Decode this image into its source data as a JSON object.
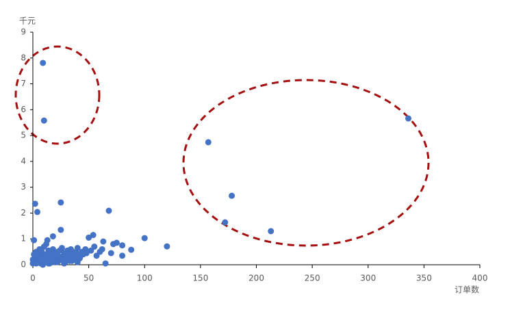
{
  "chart_data": {
    "type": "scatter",
    "x_label": "订单数",
    "y_label": "千元",
    "color": "#4472c4",
    "xlim": [
      0,
      400
    ],
    "xticks": [
      0,
      50,
      100,
      150,
      200,
      250,
      300,
      350,
      400
    ],
    "ylim": [
      0,
      9
    ],
    "yticks": [
      0,
      1,
      2,
      3,
      4,
      5,
      6,
      7,
      8,
      9
    ],
    "grid": false,
    "x": [
      9,
      10,
      157,
      336,
      178,
      172,
      213,
      2,
      4,
      25,
      68,
      100,
      120,
      25,
      1,
      54,
      50,
      63,
      65,
      88,
      80,
      80,
      75,
      18,
      13,
      0,
      0,
      1,
      1,
      2,
      2,
      3,
      3,
      4,
      4,
      5,
      5,
      6,
      6,
      7,
      7,
      8,
      8,
      9,
      10,
      10,
      11,
      12,
      12,
      13,
      14,
      15,
      15,
      16,
      17,
      18,
      19,
      20,
      20,
      21,
      22,
      23,
      24,
      25,
      26,
      27,
      28,
      29,
      30,
      31,
      32,
      33,
      34,
      35,
      36,
      37,
      38,
      39,
      40,
      41,
      42,
      44,
      45,
      47,
      48,
      52,
      55,
      57,
      60,
      62,
      70,
      72,
      3,
      6,
      9,
      14,
      22,
      28,
      33,
      40
    ],
    "values": [
      7.81,
      5.58,
      4.74,
      5.66,
      2.67,
      1.64,
      1.3,
      2.36,
      2.04,
      2.41,
      2.09,
      1.03,
      0.71,
      1.35,
      0.95,
      1.15,
      1.05,
      0.9,
      0.05,
      0.58,
      0.75,
      0.35,
      0.85,
      1.1,
      0.95,
      0.05,
      0.2,
      0.1,
      0.4,
      0.15,
      0.3,
      0.05,
      0.5,
      0.2,
      0.35,
      0.1,
      0.45,
      0.25,
      0.6,
      0.05,
      0.3,
      0.15,
      0.5,
      0.35,
      0.2,
      0.7,
      0.1,
      0.4,
      0.8,
      0.25,
      0.55,
      0.05,
      0.35,
      0.2,
      0.45,
      0.6,
      0.1,
      0.3,
      0.5,
      0.2,
      0.4,
      0.15,
      0.55,
      0.3,
      0.65,
      0.2,
      0.45,
      0.1,
      0.35,
      0.55,
      0.25,
      0.4,
      0.6,
      0.15,
      0.5,
      0.3,
      0.2,
      0.45,
      0.65,
      0.35,
      0.25,
      0.5,
      0.4,
      0.6,
      0.45,
      0.55,
      0.7,
      0.35,
      0.5,
      0.6,
      0.45,
      0.8,
      0.3,
      0.1,
      0.0,
      0.05,
      0.1,
      0.05,
      0.15,
      0.1
    ]
  }
}
